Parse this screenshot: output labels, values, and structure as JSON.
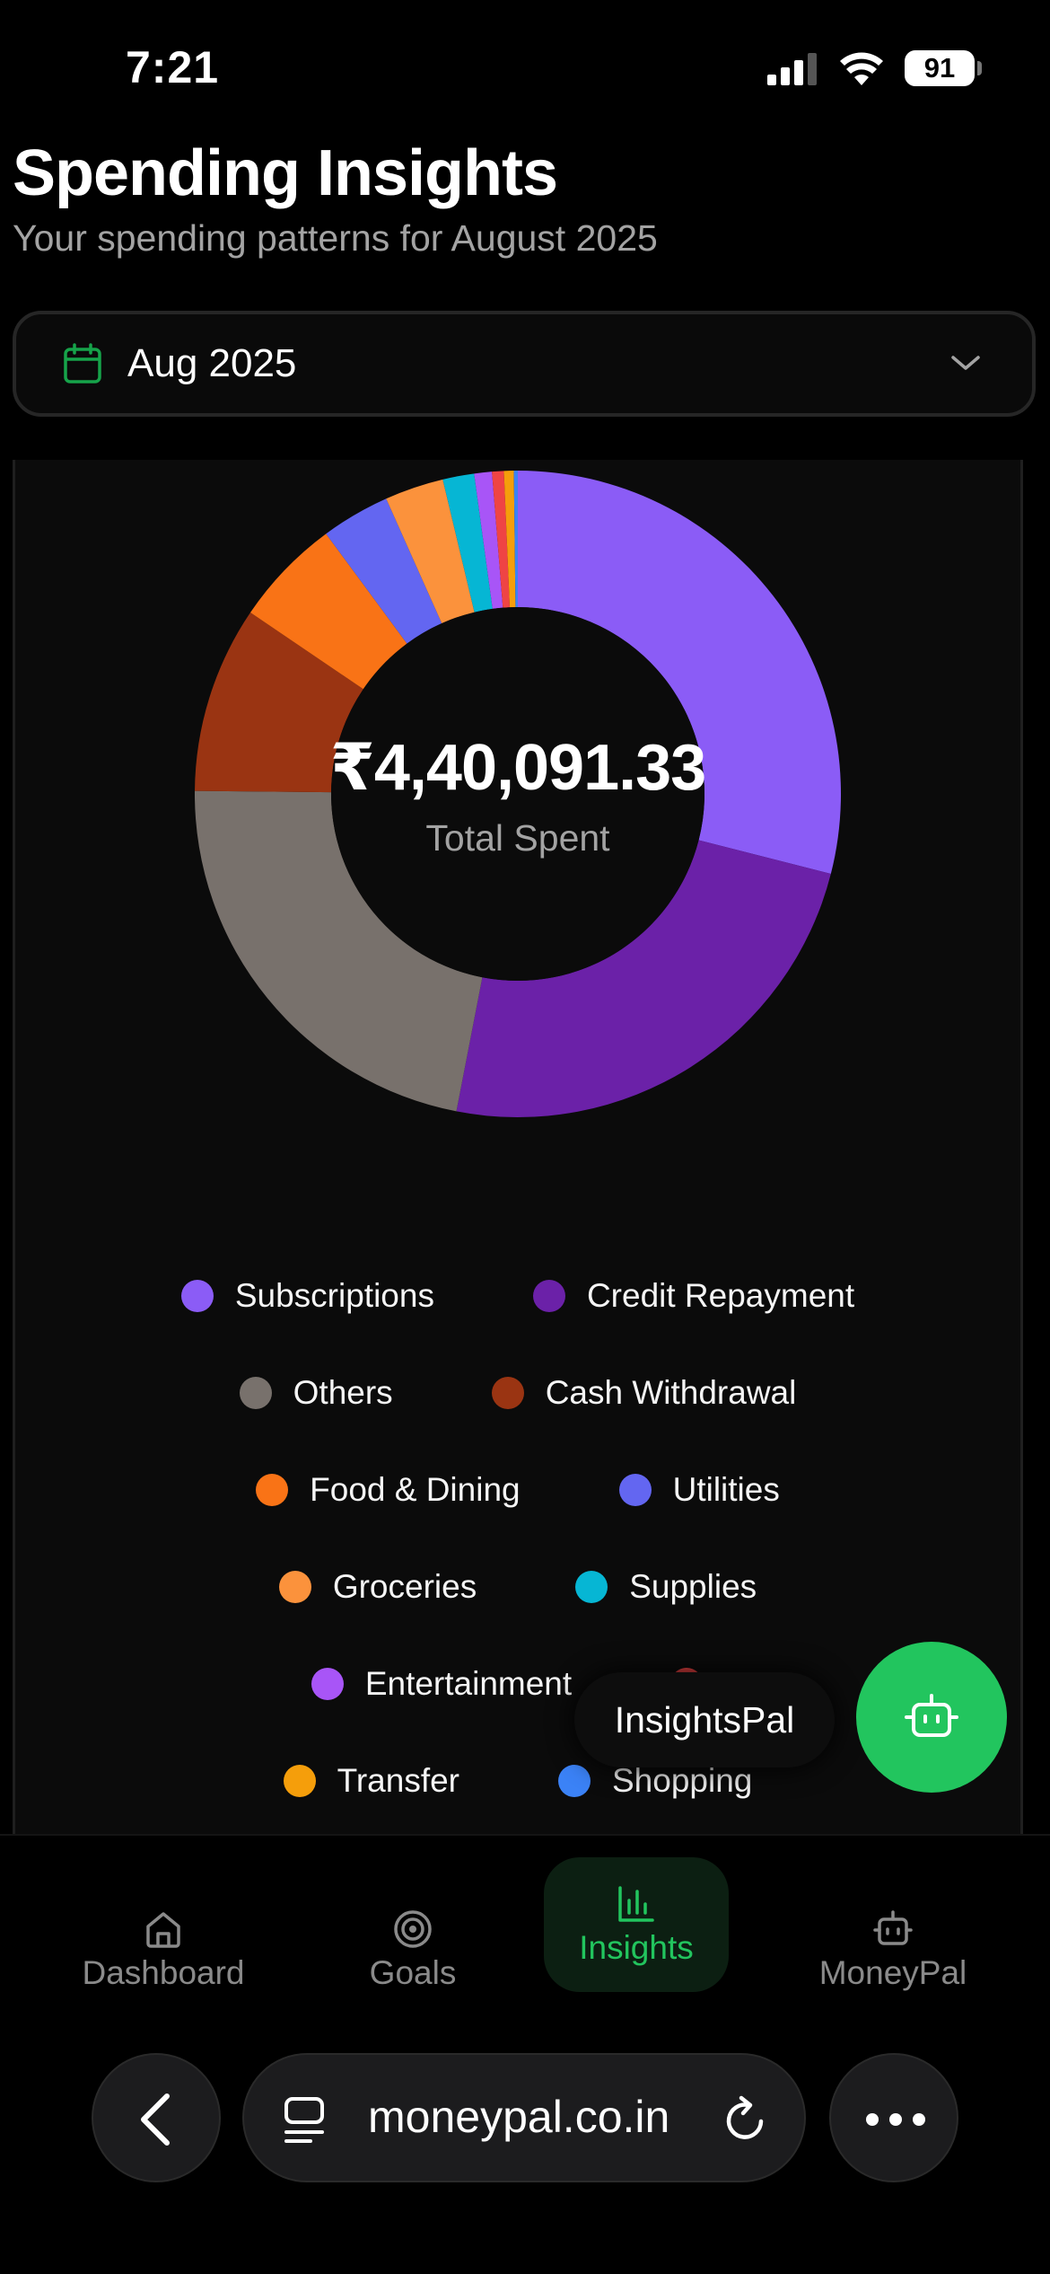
{
  "status_bar": {
    "time": "7:21",
    "battery": "91"
  },
  "header": {
    "title": "Spending Insights",
    "subtitle": "Your spending patterns for August 2025"
  },
  "month_select": {
    "value": "Aug 2025"
  },
  "chart_data": {
    "type": "pie",
    "title": "",
    "center_value": "₹4,40,091.33",
    "center_label": "Total Spent",
    "series": [
      {
        "name": "Subscriptions",
        "value": 29.5,
        "color": "#8b5cf6"
      },
      {
        "name": "Credit Repayment",
        "value": 24.5,
        "color": "#6b21a8"
      },
      {
        "name": "Others",
        "value": 22.5,
        "color": "#78716c"
      },
      {
        "name": "Cash Withdrawal",
        "value": 9.5,
        "color": "#9a3412"
      },
      {
        "name": "Food & Dining",
        "value": 5.5,
        "color": "#f97316"
      },
      {
        "name": "Utilities",
        "value": 3.5,
        "color": "#6366f1"
      },
      {
        "name": "Groceries",
        "value": 3.0,
        "color": "#fb923c"
      },
      {
        "name": "Supplies",
        "value": 1.6,
        "color": "#06b6d4"
      },
      {
        "name": "Entertainment",
        "value": 0.9,
        "color": "#a855f7"
      },
      {
        "name": "",
        "value": 0.6,
        "color": "#ef4444"
      },
      {
        "name": "Transfer",
        "value": 0.5,
        "color": "#f59e0b"
      },
      {
        "name": "Shopping",
        "value": 0.2,
        "color": "#3b82f6"
      }
    ],
    "legend_position": "bottom"
  },
  "floating_pal": {
    "label": "InsightsPal",
    "icon": "robot-icon"
  },
  "bottom_nav": {
    "items": [
      {
        "label": "Dashboard",
        "icon": "home-icon",
        "active": false
      },
      {
        "label": "Goals",
        "icon": "target-icon",
        "active": false
      },
      {
        "label": "Insights",
        "icon": "bar-chart-icon",
        "active": true
      },
      {
        "label": "MoneyPal",
        "icon": "robot-icon",
        "active": false
      }
    ],
    "active_color": "#22c55e"
  },
  "browser": {
    "url": "moneypal.co.in"
  }
}
